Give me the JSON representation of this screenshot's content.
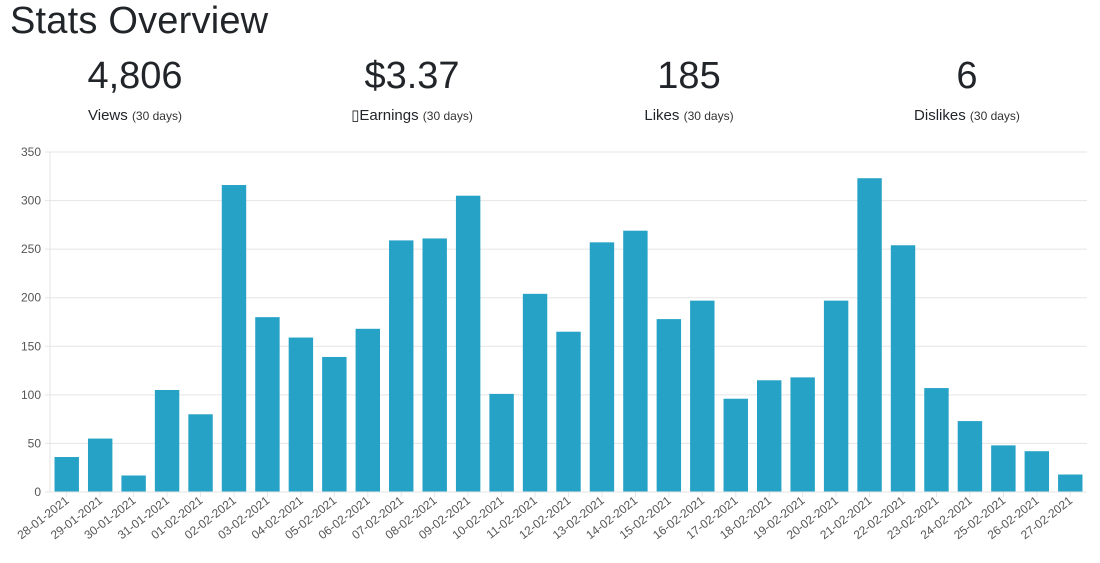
{
  "page": {
    "title": "Stats Overview"
  },
  "stats": [
    {
      "value": "4,806",
      "label": "Views",
      "period": "(30 days)"
    },
    {
      "value": "$3.37",
      "label": "▯Earnings",
      "period": "(30 days)"
    },
    {
      "value": "185",
      "label": "Likes",
      "period": "(30 days)"
    },
    {
      "value": "6",
      "label": "Dislikes",
      "period": "(30 days)"
    }
  ],
  "colors": {
    "bar": "#26a2c6",
    "grid": "#e5e5e5",
    "axis_text": "#555555"
  },
  "chart_data": {
    "type": "bar",
    "title": "",
    "xlabel": "",
    "ylabel": "",
    "ylim": [
      0,
      350
    ],
    "yticks": [
      0,
      50,
      100,
      150,
      200,
      250,
      300,
      350
    ],
    "grid": true,
    "categories": [
      "28-01-2021",
      "29-01-2021",
      "30-01-2021",
      "31-01-2021",
      "01-02-2021",
      "02-02-2021",
      "03-02-2021",
      "04-02-2021",
      "05-02-2021",
      "06-02-2021",
      "07-02-2021",
      "08-02-2021",
      "09-02-2021",
      "10-02-2021",
      "11-02-2021",
      "12-02-2021",
      "13-02-2021",
      "14-02-2021",
      "15-02-2021",
      "16-02-2021",
      "17-02-2021",
      "18-02-2021",
      "19-02-2021",
      "20-02-2021",
      "21-02-2021",
      "22-02-2021",
      "23-02-2021",
      "24-02-2021",
      "25-02-2021",
      "26-02-2021",
      "27-02-2021"
    ],
    "values": [
      36,
      55,
      17,
      105,
      80,
      316,
      180,
      159,
      139,
      168,
      259,
      261,
      305,
      101,
      204,
      165,
      257,
      269,
      178,
      197,
      96,
      115,
      118,
      197,
      323,
      254,
      107,
      73,
      48,
      42,
      18
    ]
  }
}
